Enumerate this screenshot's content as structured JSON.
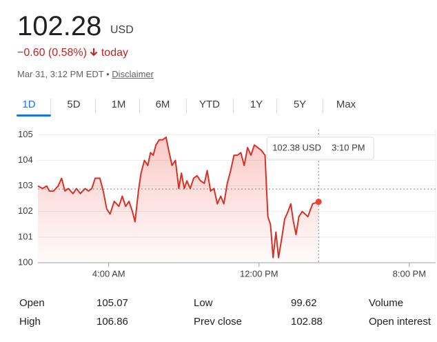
{
  "header": {
    "price": "102.28",
    "currency": "USD",
    "change": "−0.60 (0.58%)",
    "period": "today",
    "timestamp": "Mar 31, 3:12 PM EDT",
    "separator": "•",
    "disclaimer": "Disclaimer"
  },
  "tabs": [
    "1D",
    "5D",
    "1M",
    "6M",
    "YTD",
    "1Y",
    "5Y",
    "Max"
  ],
  "chart_data": {
    "type": "line",
    "color": "#d93025",
    "x": [
      0.23,
      0.48,
      0.7,
      0.84,
      1.06,
      1.31,
      1.49,
      1.67,
      1.85,
      2.1,
      2.28,
      2.49,
      2.74,
      2.92,
      3.1,
      3.28,
      3.53,
      3.71,
      3.89,
      4.07,
      4.29,
      4.54,
      4.72,
      4.9,
      5.08,
      5.26,
      5.4,
      5.58,
      5.72,
      5.9,
      6.08,
      6.22,
      6.37,
      6.51,
      6.69,
      6.87,
      7.05,
      7.19,
      7.37,
      7.55,
      7.73,
      7.87,
      8.02,
      8.16,
      8.34,
      8.52,
      8.7,
      8.88,
      9.09,
      9.24,
      9.42,
      9.6,
      9.78,
      9.96,
      10.13,
      10.31,
      10.49,
      10.67,
      10.85,
      11.03,
      11.21,
      11.39,
      11.57,
      11.75,
      11.93,
      12.11,
      12.32,
      12.47,
      12.61,
      12.75,
      12.9,
      13.04,
      13.22,
      13.36,
      13.54,
      13.69,
      13.83,
      13.97,
      14.12,
      14.3,
      14.6,
      14.85,
      15.17
    ],
    "values": [
      103.0,
      102.9,
      103.0,
      102.8,
      102.8,
      103.0,
      103.3,
      102.8,
      102.9,
      102.7,
      102.9,
      102.7,
      102.9,
      102.8,
      102.9,
      103.3,
      103.3,
      102.8,
      102.1,
      101.9,
      102.4,
      102.2,
      102.6,
      102.2,
      102.4,
      102.0,
      101.6,
      102.8,
      103.5,
      104.0,
      103.8,
      104.3,
      104.2,
      104.6,
      104.8,
      104.8,
      104.9,
      104.4,
      103.8,
      104.0,
      102.9,
      103.5,
      102.9,
      103.2,
      102.9,
      103.3,
      103.4,
      103.2,
      103.1,
      103.6,
      102.8,
      102.9,
      102.3,
      102.6,
      102.3,
      103.1,
      103.6,
      104.2,
      104.2,
      104.3,
      103.8,
      104.5,
      104.2,
      104.6,
      104.5,
      104.4,
      104.2,
      101.8,
      101.5,
      100.2,
      101.2,
      100.2,
      101.0,
      101.7,
      102.0,
      102.3,
      101.6,
      101.1,
      101.8,
      102.0,
      101.8,
      102.3,
      102.38
    ],
    "xlim": [
      0.23,
      21.4
    ],
    "xticks": [
      {
        "value": 4,
        "label": "4:00 AM"
      },
      {
        "value": 12,
        "label": "12:00 PM"
      },
      {
        "value": 20,
        "label": "8:00 PM"
      }
    ],
    "ylim": [
      100,
      105.2
    ],
    "yticks": [
      100,
      101,
      102,
      103,
      104,
      105
    ],
    "grid": true,
    "tooltip": {
      "value": "102.38 USD",
      "time": "3:10 PM"
    }
  },
  "stats": [
    [
      {
        "label": "Open",
        "value": 105.07
      },
      {
        "label": "Low",
        "value": 99.62
      },
      {
        "label": "Volume"
      }
    ],
    [
      {
        "label": "High",
        "value": 106.86
      },
      {
        "label": "Prev close",
        "value": 102.88
      },
      {
        "label": "Open interest"
      }
    ]
  ]
}
